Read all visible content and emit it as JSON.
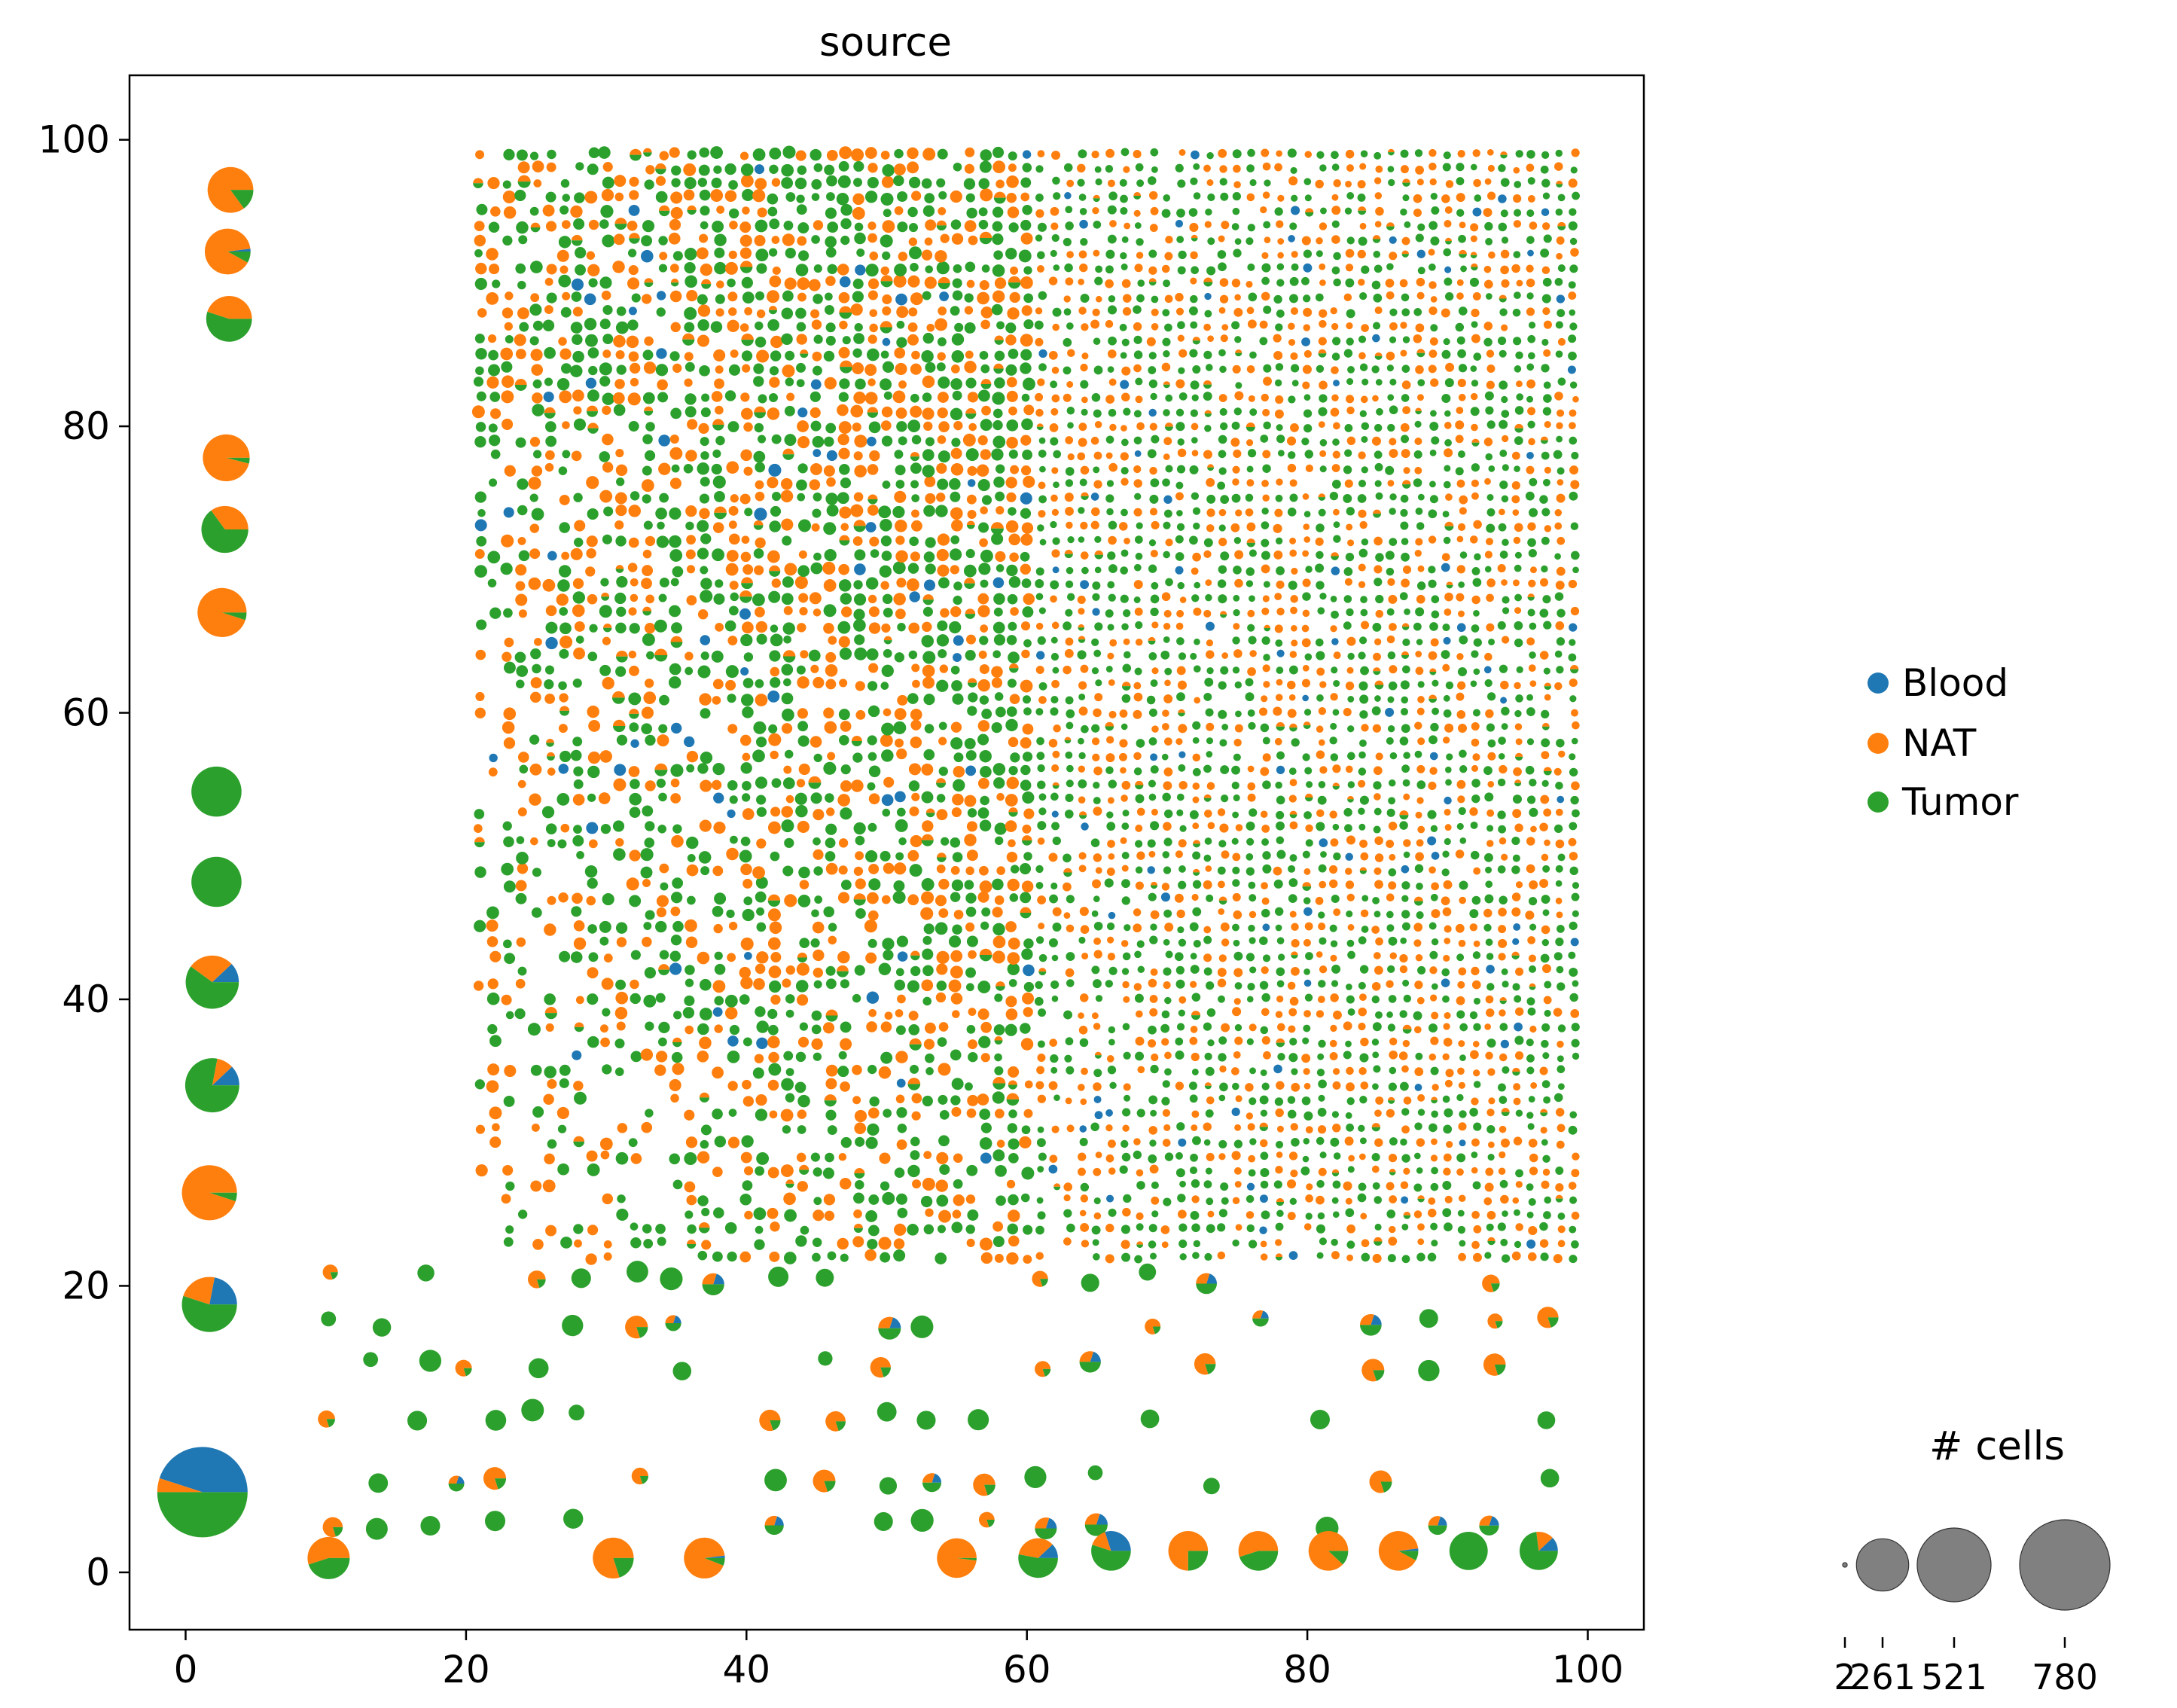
{
  "chart_data": {
    "type": "scatter",
    "subtype": "pie-scatter",
    "title": "source",
    "xlabel": "",
    "ylabel": "",
    "xlim": [
      -4,
      104
    ],
    "ylim": [
      -4,
      104.5
    ],
    "xticks": [
      0,
      20,
      40,
      60,
      80,
      100
    ],
    "yticks": [
      0,
      20,
      40,
      60,
      80,
      100
    ],
    "grid": false,
    "legend": {
      "placement": "right",
      "entries": [
        {
          "name": "Blood",
          "color": "#1f77b4"
        },
        {
          "name": "NAT",
          "color": "#ff7f0e"
        },
        {
          "name": "Tumor",
          "color": "#2ca02c"
        }
      ]
    },
    "size_legend": {
      "title": "# cells",
      "values": [
        2,
        261,
        521,
        780
      ],
      "tick_labels": [
        "2",
        "261",
        "521",
        "780"
      ]
    },
    "series_order": [
      "Blood",
      "NAT",
      "Tumor"
    ],
    "highlighted_points": [
      {
        "x": 1.2,
        "y": 5.6,
        "cells": 780,
        "fractions": [
          0.45,
          0.05,
          0.5
        ]
      },
      {
        "x": 3.2,
        "y": 96.5,
        "cells": 200,
        "fractions": [
          0,
          0.85,
          0.15
        ]
      },
      {
        "x": 3.0,
        "y": 92.2,
        "cells": 200,
        "fractions": [
          0.02,
          0.9,
          0.08
        ]
      },
      {
        "x": 3.1,
        "y": 87.5,
        "cells": 200,
        "fractions": [
          0,
          0.45,
          0.55
        ]
      },
      {
        "x": 2.9,
        "y": 77.8,
        "cells": 210,
        "fractions": [
          0,
          0.96,
          0.04
        ]
      },
      {
        "x": 2.8,
        "y": 72.8,
        "cells": 210,
        "fractions": [
          0,
          0.35,
          0.65
        ]
      },
      {
        "x": 2.6,
        "y": 67.0,
        "cells": 230,
        "fractions": [
          0,
          0.95,
          0.05
        ]
      },
      {
        "x": 2.2,
        "y": 54.5,
        "cells": 240,
        "fractions": [
          0,
          0,
          1
        ]
      },
      {
        "x": 2.2,
        "y": 48.2,
        "cells": 240,
        "fractions": [
          0,
          0,
          1
        ]
      },
      {
        "x": 1.9,
        "y": 41.2,
        "cells": 270,
        "fractions": [
          0.12,
          0.28,
          0.6
        ]
      },
      {
        "x": 1.9,
        "y": 34.0,
        "cells": 280,
        "fractions": [
          0.12,
          0.1,
          0.78
        ]
      },
      {
        "x": 1.7,
        "y": 26.5,
        "cells": 290,
        "fractions": [
          0,
          0.95,
          0.05
        ]
      },
      {
        "x": 1.7,
        "y": 18.7,
        "cells": 290,
        "fractions": [
          0.22,
          0.23,
          0.55
        ]
      },
      {
        "x": 10.2,
        "y": 1.0,
        "cells": 170,
        "fractions": [
          0,
          0.55,
          0.45
        ]
      },
      {
        "x": 30.5,
        "y": 1.0,
        "cells": 160,
        "fractions": [
          0,
          0.8,
          0.2
        ]
      },
      {
        "x": 37.0,
        "y": 1.0,
        "cells": 160,
        "fractions": [
          0.02,
          0.92,
          0.06
        ]
      },
      {
        "x": 55.0,
        "y": 1.0,
        "cells": 150,
        "fractions": [
          0,
          0.98,
          0.02
        ]
      },
      {
        "x": 60.8,
        "y": 1.0,
        "cells": 150,
        "fractions": [
          0.12,
          0.35,
          0.53
        ]
      },
      {
        "x": 66.0,
        "y": 1.5,
        "cells": 150,
        "fractions": [
          0.3,
          0.15,
          0.55
        ]
      },
      {
        "x": 71.5,
        "y": 1.5,
        "cells": 150,
        "fractions": [
          0,
          0.75,
          0.25
        ]
      },
      {
        "x": 76.5,
        "y": 1.5,
        "cells": 150,
        "fractions": [
          0,
          0.55,
          0.45
        ]
      },
      {
        "x": 81.5,
        "y": 1.5,
        "cells": 150,
        "fractions": [
          0,
          0.88,
          0.12
        ]
      },
      {
        "x": 86.5,
        "y": 1.5,
        "cells": 150,
        "fractions": [
          0.02,
          0.9,
          0.08
        ]
      },
      {
        "x": 91.5,
        "y": 1.5,
        "cells": 140,
        "fractions": [
          0,
          0,
          1
        ]
      },
      {
        "x": 96.5,
        "y": 1.5,
        "cells": 140,
        "fractions": [
          0.12,
          0.15,
          0.73
        ]
      }
    ],
    "grid_points_note_generated": true
  }
}
